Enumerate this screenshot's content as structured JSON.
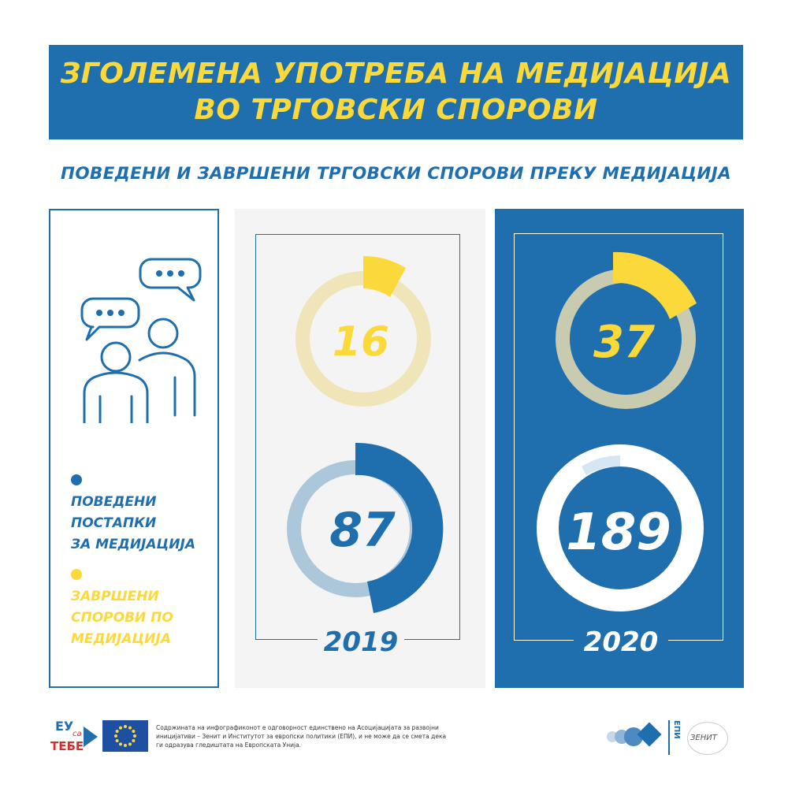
{
  "header": {
    "title_line1": "ЗГОЛЕМЕНА УПОТРЕБА НА МЕДИЈАЦИЈА",
    "title_line2": "ВО ТРГОВСКИ СПОРОВИ"
  },
  "subtitle": "ПОВЕДЕНИ И ЗАВРШЕНИ ТРГОВСКИ СПОРОВИ ПРЕКУ МЕДИЈАЦИЈА",
  "legend": {
    "initiated": {
      "line1": "ПОВЕДЕНИ",
      "line2": "ПОСТАПКИ",
      "line3": "ЗА МЕДИЈАЦИЈА",
      "color": "#1f6fae"
    },
    "completed": {
      "line1": "ЗАВРШЕНИ",
      "line2": "СПОРОВИ ПО",
      "line3": "МЕДИЈАЦИЈА",
      "color": "#fcd93a"
    }
  },
  "years": {
    "y2019": {
      "label": "2019",
      "completed": "16",
      "initiated": "87"
    },
    "y2020": {
      "label": "2020",
      "completed": "37",
      "initiated": "189"
    }
  },
  "footer": {
    "disclaimer": "Содржината на инфографиконот е одговорност единствено на Асоцијацијата за развојни иницијативи – Зенит и Институтот за европски политики (ЕПИ), и не може да се смета дека ги одразува гледиштата на Европската Унија.",
    "logo_eu_line1": "ЕУ",
    "logo_eu_line2": "са",
    "logo_eu_line3": "ТЕБЕ",
    "logo_epi": "ЕПИ",
    "logo_zenit": "ЗЕНИТ"
  },
  "colors": {
    "blue": "#1f6fae",
    "yellow": "#fcd93a",
    "light_yellow_ring": "#efe5b8",
    "light_blue_ring": "#abc7d9",
    "tan_ring": "#c8cbb0",
    "white": "#ffffff",
    "pale_blue_segment": "#d7e6f4"
  }
}
